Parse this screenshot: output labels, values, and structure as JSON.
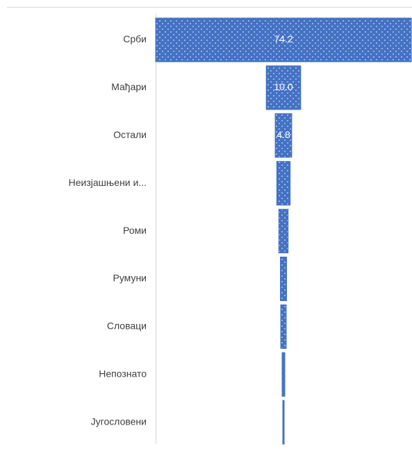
{
  "chart_data": {
    "type": "funnel",
    "categories": [
      "Срби",
      "Мађари",
      "Остали",
      "Неизјашњени и...",
      "Роми",
      "Румуни",
      "Словаци",
      "Непознато",
      "Југословени"
    ],
    "values": [
      74.2,
      10.0,
      4.8,
      3.9,
      2.7,
      1.8,
      1.6,
      0.8,
      0.4
    ],
    "value_labels": [
      "74.2",
      "10.0",
      "4.8",
      null,
      null,
      null,
      null,
      null,
      null
    ],
    "color": "#4472c4"
  }
}
